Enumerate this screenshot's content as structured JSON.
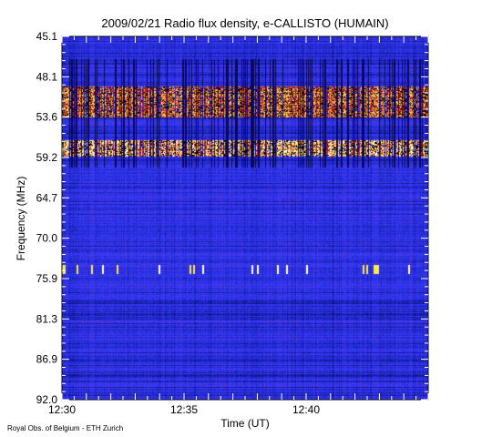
{
  "chart_data": {
    "type": "heatmap",
    "title": "2009/02/21  Radio flux density, e-CALLISTO (HUMAIN)",
    "xlabel": "Time (UT)",
    "ylabel": "Frequency (MHz)",
    "credit": "Royal Obs. of Belgium - ETH Zurich",
    "x_tick_labels": [
      "12:30",
      "12:35",
      "12:40"
    ],
    "x_tick_minutes": [
      0,
      5,
      10
    ],
    "x_range_minutes": [
      0,
      15
    ],
    "y_tick_labels": [
      "45.1",
      "48.1",
      "53.6",
      "59.2",
      "64.7",
      "70.0",
      "75.9",
      "81.3",
      "86.9",
      "92.0"
    ],
    "y_range_mhz": [
      45.1,
      92.0
    ],
    "y_inverted": true,
    "colormap": [
      "#000000",
      "#0a0a6e",
      "#1e28c8",
      "#3c3cff",
      "#c81414",
      "#ff7a1a",
      "#ffe84a",
      "#ffffff"
    ],
    "features": [
      {
        "kind": "emission_band",
        "freq_mhz": [
          51.5,
          55.5
        ],
        "intensity": 0.55
      },
      {
        "kind": "emission_band",
        "freq_mhz": [
          58.5,
          60.5
        ],
        "intensity": 0.75
      },
      {
        "kind": "bright_lines",
        "freq_mhz": 75.2,
        "intensity": 0.9
      }
    ]
  }
}
